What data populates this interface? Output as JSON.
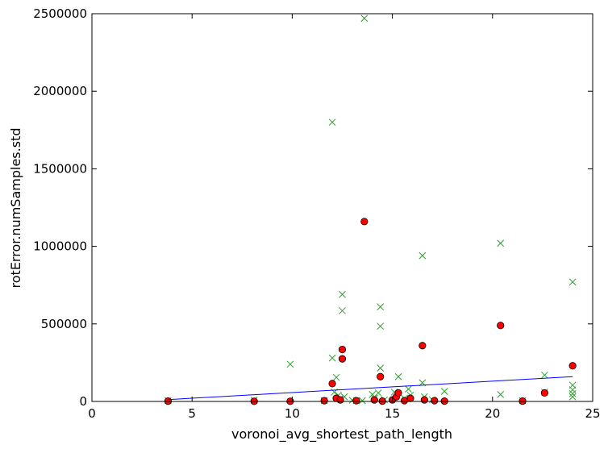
{
  "chart_data": {
    "type": "scatter",
    "title": "",
    "xlabel": "voronoi_avg_shortest_path_length",
    "ylabel": "rotError.numSamples.std",
    "xlim": [
      0,
      25
    ],
    "ylim": [
      0,
      2500000
    ],
    "x_ticks": [
      0,
      5,
      10,
      15,
      20,
      25
    ],
    "y_ticks": [
      0,
      500000,
      1000000,
      1500000,
      2000000,
      2500000
    ],
    "x_tick_labels": [
      "0",
      "5",
      "10",
      "15",
      "20",
      "25"
    ],
    "y_tick_labels": [
      "0",
      "500000",
      "1000000",
      "1500000",
      "2000000",
      "2500000"
    ],
    "grid": false,
    "legend": "none",
    "series": [
      {
        "marker": "x",
        "color": "#2ca02c",
        "points": [
          [
            3.8,
            5000
          ],
          [
            8.1,
            8000
          ],
          [
            9.9,
            240000
          ],
          [
            11.6,
            5000
          ],
          [
            12.0,
            1800000
          ],
          [
            12.0,
            280000
          ],
          [
            12.1,
            60000
          ],
          [
            12.2,
            155000
          ],
          [
            12.3,
            40000
          ],
          [
            12.4,
            20000
          ],
          [
            12.5,
            690000
          ],
          [
            12.5,
            585000
          ],
          [
            12.6,
            30000
          ],
          [
            13.0,
            8000
          ],
          [
            13.2,
            5000
          ],
          [
            13.5,
            5000
          ],
          [
            13.6,
            2470000
          ],
          [
            14.0,
            45000
          ],
          [
            14.1,
            20000
          ],
          [
            14.3,
            55000
          ],
          [
            14.4,
            610000
          ],
          [
            14.4,
            485000
          ],
          [
            14.4,
            215000
          ],
          [
            14.6,
            10000
          ],
          [
            15.1,
            60000
          ],
          [
            15.3,
            160000
          ],
          [
            15.6,
            20000
          ],
          [
            15.8,
            80000
          ],
          [
            15.9,
            40000
          ],
          [
            16.5,
            940000
          ],
          [
            16.5,
            120000
          ],
          [
            16.6,
            30000
          ],
          [
            17.0,
            10000
          ],
          [
            17.6,
            65000
          ],
          [
            20.4,
            1020000
          ],
          [
            20.4,
            45000
          ],
          [
            21.5,
            5000
          ],
          [
            22.6,
            170000
          ],
          [
            22.6,
            60000
          ],
          [
            24.0,
            770000
          ],
          [
            24.0,
            105000
          ],
          [
            24.0,
            75000
          ],
          [
            24.0,
            50000
          ],
          [
            24.0,
            30000
          ]
        ]
      },
      {
        "marker": "o",
        "color": "#ff0000",
        "points": [
          [
            3.8,
            2000
          ],
          [
            8.1,
            1000
          ],
          [
            9.9,
            1000
          ],
          [
            11.6,
            5000
          ],
          [
            12.0,
            115000
          ],
          [
            12.2,
            20000
          ],
          [
            12.4,
            10000
          ],
          [
            12.5,
            335000
          ],
          [
            12.5,
            275000
          ],
          [
            13.2,
            5000
          ],
          [
            13.6,
            1160000
          ],
          [
            14.1,
            10000
          ],
          [
            14.4,
            160000
          ],
          [
            14.5,
            2000
          ],
          [
            15.0,
            10000
          ],
          [
            15.2,
            30000
          ],
          [
            15.3,
            55000
          ],
          [
            15.6,
            5000
          ],
          [
            15.9,
            20000
          ],
          [
            16.5,
            360000
          ],
          [
            16.6,
            10000
          ],
          [
            17.1,
            5000
          ],
          [
            17.6,
            2000
          ],
          [
            20.4,
            490000
          ],
          [
            21.5,
            2000
          ],
          [
            22.6,
            55000
          ],
          [
            24.0,
            230000
          ]
        ]
      }
    ],
    "fit_line": {
      "color": "#0000ff",
      "points": [
        [
          3.8,
          12000
        ],
        [
          24.0,
          160000
        ]
      ]
    }
  }
}
